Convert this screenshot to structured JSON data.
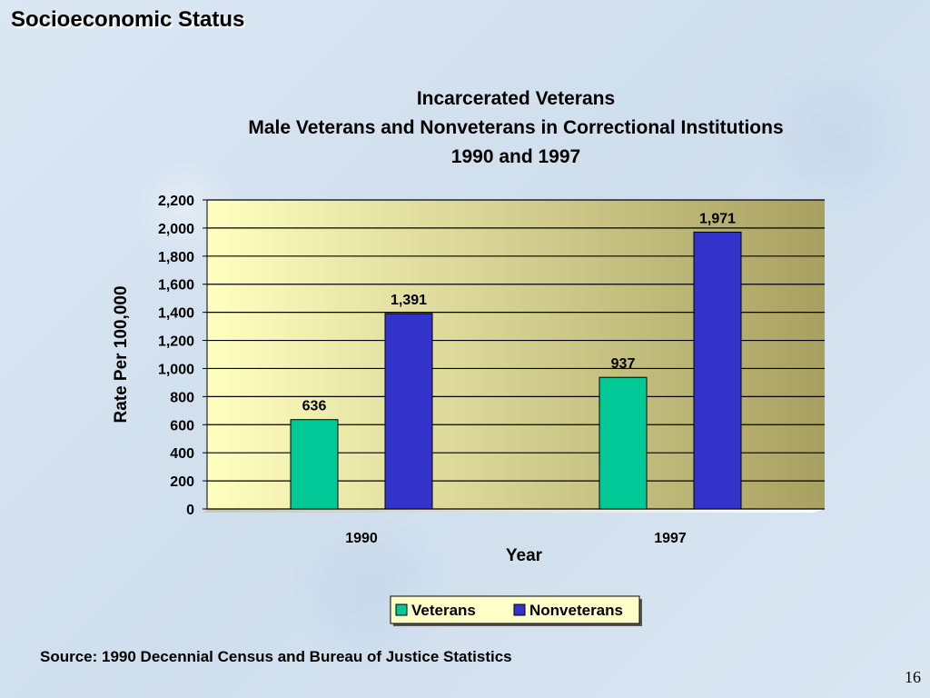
{
  "slide": {
    "title": "Socioeconomic Status",
    "source": "Source:  1990 Decennial Census and Bureau of Justice Statistics",
    "page_number": "16"
  },
  "colors": {
    "veterans": "#00c896",
    "nonveterans": "#3333cc",
    "plot_bg_light": "#ffffc0",
    "plot_bg_dark": "#a8a060"
  },
  "chart_data": {
    "type": "bar",
    "title_lines": [
      "Incarcerated Veterans",
      "Male Veterans and Nonveterans in Correctional Institutions",
      "1990 and 1997"
    ],
    "xlabel": "Year",
    "ylabel": "Rate Per 100,000",
    "categories": [
      "1990",
      "1997"
    ],
    "series": [
      {
        "name": "Veterans",
        "values": [
          636,
          937
        ],
        "labels": [
          "636",
          "937"
        ]
      },
      {
        "name": "Nonveterans",
        "values": [
          1391,
          1971
        ],
        "labels": [
          "1,391",
          "1,971"
        ]
      }
    ],
    "ylim": [
      0,
      2200
    ],
    "yticks": [
      0,
      200,
      400,
      600,
      800,
      1000,
      1200,
      1400,
      1600,
      1800,
      2000,
      2200
    ],
    "ytick_labels": [
      "0",
      "200",
      "400",
      "600",
      "800",
      "1,000",
      "1,200",
      "1,400",
      "1,600",
      "1,800",
      "2,000",
      "2,200"
    ],
    "grid": true,
    "legend_position": "bottom"
  }
}
